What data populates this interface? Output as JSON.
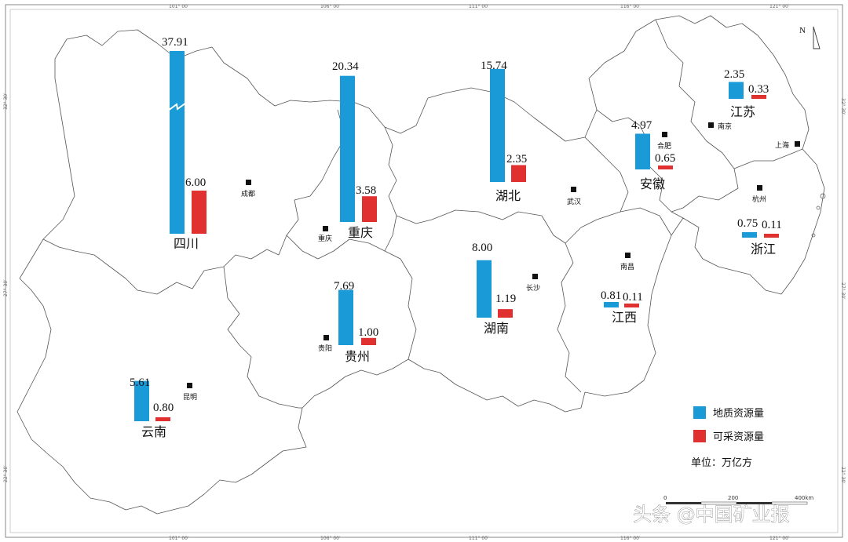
{
  "colors": {
    "geological": "#1a9ad6",
    "recoverable": "#e03030",
    "border": "#555555"
  },
  "legend": {
    "geological": "地质资源量",
    "recoverable": "可采资源量",
    "unit": "单位：万亿方"
  },
  "north_label": "N",
  "scale": {
    "zero": "0",
    "mid": "200",
    "end": "400km"
  },
  "watermark": "头条 @中国矿业报",
  "grid": {
    "top": [
      "101° 00′",
      "106° 00′",
      "111° 00′",
      "116° 00′",
      "121° 00′"
    ],
    "bottom": [
      "101° 00′",
      "106° 00′",
      "111° 00′",
      "116° 00′",
      "121° 00′"
    ],
    "left": [
      "32° 30′",
      "27° 30′",
      "22° 30′"
    ],
    "right": [
      "32° 30′",
      "27° 30′",
      "22° 30′"
    ]
  },
  "cities": [
    "成都",
    "重庆",
    "贵阳",
    "昆明",
    "武汉",
    "长沙",
    "南昌",
    "合肥",
    "南京",
    "杭州",
    "上海"
  ],
  "chart_data": {
    "type": "bar",
    "title": "",
    "unit": "万亿方",
    "categories": [
      "四川",
      "重庆",
      "湖北",
      "贵州",
      "湖南",
      "云南",
      "安徽",
      "江苏",
      "江西",
      "浙江"
    ],
    "series": [
      {
        "name": "地质资源量",
        "values": [
          37.91,
          20.34,
          15.74,
          7.69,
          8.0,
          5.61,
          4.97,
          2.35,
          0.81,
          0.75
        ]
      },
      {
        "name": "可采资源量",
        "values": [
          6.0,
          3.58,
          2.35,
          1.0,
          1.19,
          0.8,
          0.65,
          0.33,
          0.11,
          0.11
        ]
      }
    ],
    "value_labels": {
      "geological": [
        "37.91",
        "20.34",
        "15.74",
        "7.69",
        "8.00",
        "5.61",
        "4.97",
        "2.35",
        "0.81",
        "0.75"
      ],
      "recoverable": [
        "6.00",
        "3.58",
        "2.35",
        "1.00",
        "1.19",
        "0.80",
        "0.65",
        "0.33",
        "0.11",
        "0.11"
      ]
    },
    "broken_axis_series_index": 0,
    "broken_axis_category": "四川"
  }
}
